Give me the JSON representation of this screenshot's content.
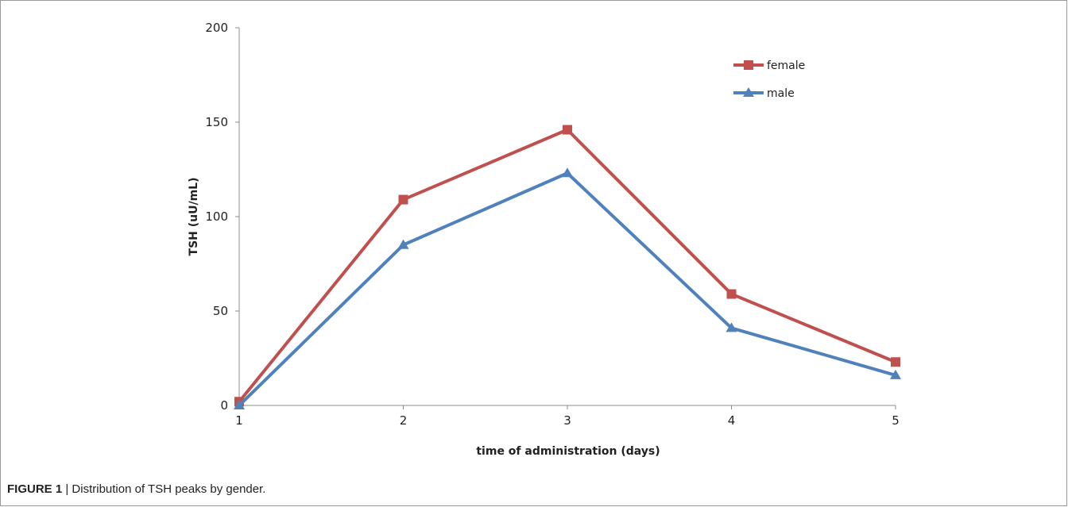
{
  "caption": {
    "figure_label": "FIGURE 1",
    "separator": " | ",
    "text": "Distribution of TSH peaks by gender."
  },
  "chart_data": {
    "type": "line",
    "title": "",
    "xlabel": "time of administration  (days)",
    "ylabel": "TSH (uU/mL)",
    "x": [
      1,
      2,
      3,
      4,
      5
    ],
    "x_tick_labels": [
      "1",
      "2",
      "3",
      "4",
      "5"
    ],
    "ylim": [
      0,
      200
    ],
    "y_ticks": [
      0,
      50,
      100,
      150,
      200
    ],
    "grid": false,
    "legend_position": "top-right",
    "series": [
      {
        "name": "female",
        "color": "#c0504d",
        "marker": "square",
        "values": [
          2,
          109,
          146,
          59,
          23
        ]
      },
      {
        "name": "male",
        "color": "#4f81bd",
        "marker": "triangle",
        "values": [
          0,
          85,
          123,
          41,
          16
        ]
      }
    ]
  }
}
